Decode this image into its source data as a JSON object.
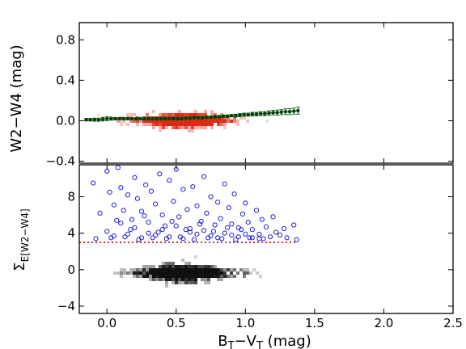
{
  "chart_data": [
    {
      "type": "scatter",
      "panel": "top",
      "ylabel": "W2−W4 (mag)",
      "xlim": [
        -0.2,
        2.5
      ],
      "ylim": [
        -0.42,
        0.97
      ],
      "yticks": [
        -0.4,
        0.0,
        0.4,
        0.8
      ],
      "ytick_labels": [
        "−0.4",
        "0.0",
        "0.4",
        "0.8"
      ],
      "density_color": "#dd2a16",
      "series": [
        {
          "style": "binned-mean-with-errorbars",
          "color": "#1a6b1a",
          "x": [
            -0.15,
            -0.12,
            -0.09,
            -0.06,
            -0.03,
            0.0,
            0.03,
            0.06,
            0.09,
            0.12,
            0.15,
            0.18,
            0.21,
            0.24,
            0.27,
            0.3,
            0.33,
            0.36,
            0.39,
            0.42,
            0.45,
            0.48,
            0.51,
            0.54,
            0.57,
            0.6,
            0.63,
            0.66,
            0.69,
            0.72,
            0.75,
            0.78,
            0.81,
            0.84,
            0.87,
            0.9,
            0.93,
            0.96,
            0.99,
            1.02,
            1.05,
            1.08,
            1.11,
            1.14,
            1.17,
            1.2,
            1.23,
            1.26,
            1.29,
            1.32,
            1.35,
            1.38
          ],
          "y": [
            0.01,
            0.01,
            0.01,
            0.01,
            0.015,
            0.02,
            0.02,
            0.02,
            0.02,
            0.02,
            0.02,
            0.02,
            0.02,
            0.02,
            0.02,
            0.02,
            0.02,
            0.02,
            0.02,
            0.02,
            0.02,
            0.02,
            0.02,
            0.02,
            0.025,
            0.025,
            0.03,
            0.03,
            0.03,
            0.035,
            0.035,
            0.04,
            0.04,
            0.045,
            0.045,
            0.05,
            0.05,
            0.055,
            0.06,
            0.06,
            0.065,
            0.065,
            0.07,
            0.07,
            0.075,
            0.08,
            0.08,
            0.085,
            0.09,
            0.09,
            0.095,
            0.1
          ],
          "err": [
            0.012,
            0.012,
            0.015,
            0.015,
            0.018,
            0.02,
            0.015,
            0.012,
            0.01,
            0.01,
            0.01,
            0.01,
            0.01,
            0.01,
            0.01,
            0.01,
            0.01,
            0.01,
            0.01,
            0.01,
            0.01,
            0.01,
            0.01,
            0.01,
            0.01,
            0.01,
            0.01,
            0.01,
            0.01,
            0.01,
            0.01,
            0.01,
            0.012,
            0.012,
            0.012,
            0.012,
            0.015,
            0.015,
            0.015,
            0.015,
            0.018,
            0.018,
            0.02,
            0.02,
            0.022,
            0.022,
            0.025,
            0.025,
            0.028,
            0.03,
            0.03,
            0.035
          ]
        }
      ]
    },
    {
      "type": "scatter",
      "panel": "bottom",
      "xlabel": "B_T−V_T (mag)",
      "ylabel": "Σ_E[W2−W4]",
      "xlim": [
        -0.2,
        2.5
      ],
      "ylim": [
        -4.8,
        11.5
      ],
      "xticks": [
        0.0,
        0.5,
        1.0,
        1.5,
        2.0,
        2.5
      ],
      "xtick_labels": [
        "0.0",
        "0.5",
        "1.0",
        "1.5",
        "2.0",
        "2.5"
      ],
      "yticks": [
        -4,
        0,
        4,
        8
      ],
      "ytick_labels": [
        "−4",
        "0",
        "4",
        "8"
      ],
      "density_color": "#111111",
      "threshold": {
        "y": 3.0,
        "x_range": [
          -0.2,
          1.38
        ],
        "color": "#cc0000",
        "style": "dotted"
      },
      "series": [
        {
          "style": "open-circles",
          "color": "#1f1fd6",
          "x": [
            -0.1,
            -0.05,
            0.0,
            0.02,
            0.05,
            0.08,
            0.1,
            0.12,
            0.15,
            0.18,
            0.2,
            0.22,
            0.25,
            0.28,
            0.3,
            0.32,
            0.35,
            0.38,
            0.4,
            0.42,
            0.45,
            0.48,
            0.5,
            0.52,
            0.55,
            0.58,
            0.6,
            0.62,
            0.65,
            0.68,
            0.7,
            0.72,
            0.75,
            0.78,
            0.8,
            0.82,
            0.85,
            0.88,
            0.9,
            0.92,
            0.95,
            0.98,
            1.0,
            1.02,
            1.05,
            1.08,
            1.1,
            1.12,
            1.15,
            1.18,
            1.2,
            1.22,
            1.25,
            1.28,
            1.3,
            1.35,
            1.37,
            0.0,
            0.05,
            0.1,
            0.15,
            0.2,
            0.25,
            0.3,
            0.35,
            0.4,
            0.45,
            0.5,
            0.55,
            0.6,
            0.65,
            0.7,
            0.75,
            0.8,
            0.85,
            0.9,
            0.95,
            1.0,
            1.05,
            1.1,
            -0.08,
            0.03,
            0.13,
            0.23,
            0.33,
            0.43,
            0.53,
            0.63,
            0.73,
            0.83,
            0.93,
            1.03,
            1.13,
            0.07,
            0.17,
            0.27,
            0.37,
            0.47,
            0.57,
            0.67,
            0.77,
            0.87,
            0.97
          ],
          "y": [
            9.5,
            6.2,
            10.8,
            8.5,
            7.1,
            11.2,
            9.0,
            6.5,
            8.2,
            5.5,
            10.1,
            7.8,
            6.4,
            9.3,
            5.2,
            8.6,
            7.2,
            10.5,
            6.0,
            4.8,
            9.8,
            7.5,
            11.0,
            5.8,
            8.8,
            6.6,
            4.5,
            9.1,
            7.0,
            5.3,
            10.2,
            6.2,
            8.0,
            4.9,
            7.4,
            5.6,
            9.4,
            6.8,
            5.0,
            8.3,
            4.6,
            6.1,
            7.3,
            5.2,
            4.4,
            6.5,
            3.9,
            5.5,
            4.7,
            3.6,
            5.8,
            4.1,
            3.8,
            4.5,
            3.5,
            4.9,
            3.3,
            4.2,
            3.7,
            5.1,
            3.9,
            4.6,
            3.5,
            4.0,
            3.8,
            4.4,
            3.6,
            4.8,
            3.4,
            4.1,
            3.9,
            4.3,
            3.7,
            3.5,
            4.0,
            3.8,
            3.6,
            3.9,
            3.5,
            3.4,
            3.4,
            3.5,
            3.6,
            3.3,
            3.5,
            3.4,
            3.6,
            3.3,
            3.5,
            3.4,
            3.3,
            3.5,
            3.4,
            5.4,
            4.4,
            5.9,
            4.1,
            5.3,
            4.4,
            5.0,
            4.2,
            4.6,
            4.4
          ]
        }
      ]
    }
  ]
}
